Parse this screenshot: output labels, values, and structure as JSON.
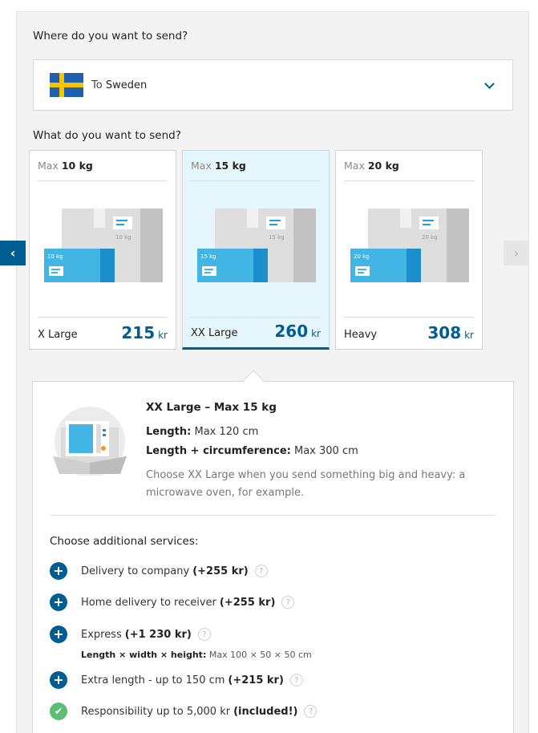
{
  "questions": {
    "where": "Where do you want to send?",
    "what": "What do you want to send?"
  },
  "destination": {
    "prefix": "To",
    "country": "Sweden",
    "flag_colors": {
      "blue": "#1f5fad",
      "yellow": "#f7c400"
    }
  },
  "nav": {
    "prev_glyph": "‹",
    "next_glyph": "›"
  },
  "options": [
    {
      "max_prefix": "Max",
      "max_weight": "10 kg",
      "name": "X Large",
      "price": "215",
      "unit": "kr",
      "front_label": "10 kg",
      "back_label": "10 kg",
      "selected": false
    },
    {
      "max_prefix": "Max",
      "max_weight": "15 kg",
      "name": "XX Large",
      "price": "260",
      "unit": "kr",
      "front_label": "15 kg",
      "back_label": "15 kg",
      "selected": true
    },
    {
      "max_prefix": "Max",
      "max_weight": "20 kg",
      "name": "Heavy",
      "price": "308",
      "unit": "kr",
      "front_label": "20 kg",
      "back_label": "20 kg",
      "selected": false
    }
  ],
  "detail": {
    "title": "XX Large – Max 15 kg",
    "length_label": "Length:",
    "length_value": "Max 120 cm",
    "circ_label": "Length + circumference:",
    "circ_value": "Max 300 cm",
    "description": "Choose XX Large when you send something big and heavy: a microwave oven, for example."
  },
  "services": {
    "title": "Choose additional services:",
    "items": [
      {
        "label": "Delivery to company",
        "price": "(+255 kr)",
        "icon": "plus-icon"
      },
      {
        "label": "Home delivery to receiver",
        "price": "(+255 kr)",
        "icon": "plus-icon"
      },
      {
        "label": "Express",
        "price": "(+1 230 kr)",
        "icon": "plus-icon",
        "sub_label": "Length × width × height:",
        "sub_value": "Max 100 × 50 × 50 cm"
      },
      {
        "label": "Extra length - up to 150 cm",
        "price": "(+215 kr)",
        "icon": "plus-icon"
      },
      {
        "label": "Responsibility up to 5,000 kr",
        "price": "(included!)",
        "icon": "check-icon"
      }
    ],
    "help_glyph": "?"
  },
  "colors": {
    "accent": "#005d92",
    "selected_bg": "#e5f7fc",
    "included": "#5dbf74"
  }
}
